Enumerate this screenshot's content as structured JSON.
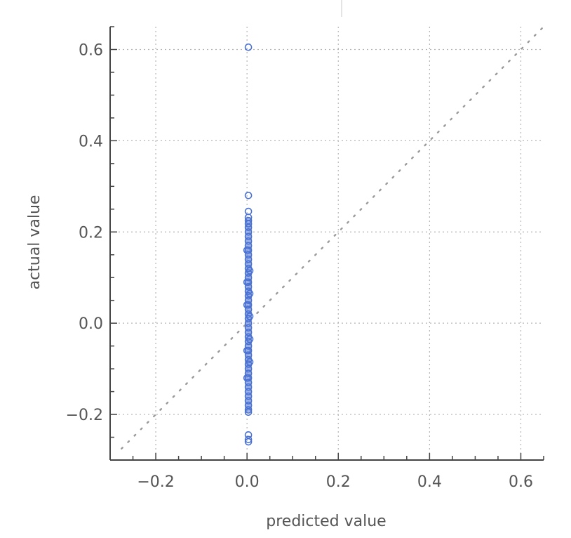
{
  "chart_data": {
    "type": "scatter",
    "title": "",
    "xlabel": "predicted value",
    "ylabel": "actual value",
    "xlim": [
      -0.3,
      0.65
    ],
    "ylim": [
      -0.3,
      0.65
    ],
    "x_ticks": [
      "-0.2",
      "0.0",
      "0.2",
      "0.4",
      "0.6"
    ],
    "y_ticks": [
      "-0.2",
      "0.0",
      "0.2",
      "0.4",
      "0.6"
    ],
    "x_tick_values": [
      -0.2,
      0.0,
      0.2,
      0.4,
      0.6
    ],
    "y_tick_values": [
      -0.2,
      0.0,
      0.2,
      0.4,
      0.6
    ],
    "grid": true,
    "reference_line": {
      "style": "dotted",
      "slope": 1,
      "intercept": 0,
      "color": "#9a9a9a"
    },
    "marker": {
      "shape": "open-circle",
      "color": "#4a72d4"
    },
    "series": [
      {
        "points": [
          [
            0.003,
            0.605
          ],
          [
            0.003,
            0.28
          ],
          [
            0.003,
            0.245
          ],
          [
            0.003,
            0.232
          ],
          [
            0.003,
            0.225
          ],
          [
            0.003,
            0.218
          ],
          [
            0.003,
            0.21
          ],
          [
            0.003,
            0.2
          ],
          [
            0.003,
            0.19
          ],
          [
            0.003,
            0.18
          ],
          [
            0.003,
            0.17
          ],
          [
            0.003,
            0.16
          ],
          [
            0.003,
            0.15
          ],
          [
            0.003,
            0.14
          ],
          [
            0.003,
            0.13
          ],
          [
            0.003,
            0.12
          ],
          [
            0.003,
            0.11
          ],
          [
            0.003,
            0.1
          ],
          [
            0.003,
            0.09
          ],
          [
            0.003,
            0.08
          ],
          [
            0.003,
            0.07
          ],
          [
            0.003,
            0.06
          ],
          [
            0.003,
            0.05
          ],
          [
            0.003,
            0.04
          ],
          [
            0.003,
            0.03
          ],
          [
            0.003,
            0.02
          ],
          [
            0.003,
            0.01
          ],
          [
            0.003,
            0.0
          ],
          [
            0.003,
            -0.01
          ],
          [
            0.003,
            -0.02
          ],
          [
            0.003,
            -0.03
          ],
          [
            0.003,
            -0.04
          ],
          [
            0.003,
            -0.05
          ],
          [
            0.003,
            -0.06
          ],
          [
            0.003,
            -0.07
          ],
          [
            0.003,
            -0.08
          ],
          [
            0.003,
            -0.09
          ],
          [
            0.003,
            -0.1
          ],
          [
            0.003,
            -0.11
          ],
          [
            0.003,
            -0.12
          ],
          [
            0.003,
            -0.13
          ],
          [
            0.003,
            -0.14
          ],
          [
            0.003,
            -0.15
          ],
          [
            0.003,
            -0.16
          ],
          [
            0.003,
            -0.17
          ],
          [
            0.003,
            -0.18
          ],
          [
            0.003,
            -0.19
          ],
          [
            0.003,
            -0.195
          ],
          [
            0.003,
            -0.245
          ],
          [
            0.003,
            -0.255
          ],
          [
            0.003,
            -0.26
          ],
          [
            0.006,
            0.015
          ],
          [
            0.006,
            -0.035
          ],
          [
            0.006,
            -0.085
          ],
          [
            0.006,
            0.065
          ],
          [
            0.006,
            0.115
          ],
          [
            0.0,
            0.04
          ],
          [
            0.0,
            -0.06
          ],
          [
            0.0,
            -0.12
          ],
          [
            0.0,
            0.09
          ],
          [
            0.0,
            0.16
          ]
        ]
      }
    ]
  }
}
